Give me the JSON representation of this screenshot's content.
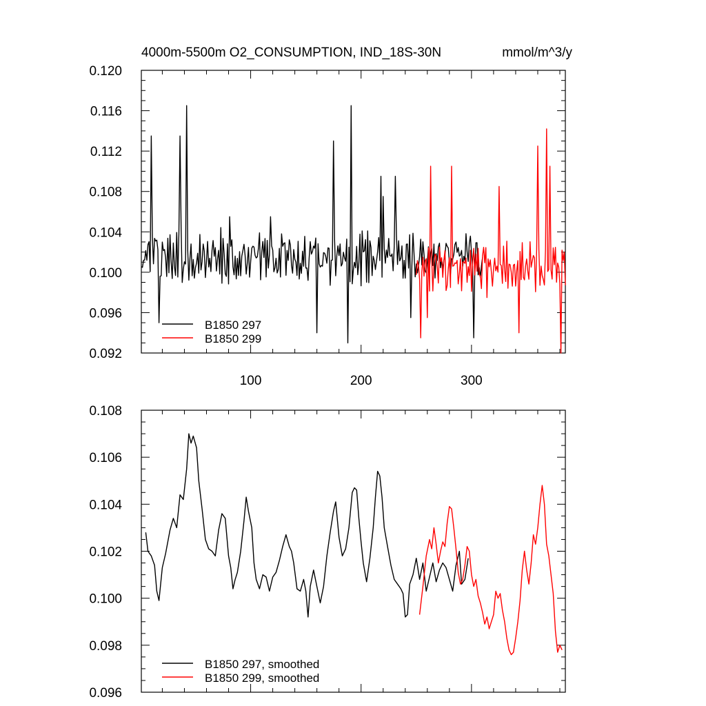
{
  "chart_data": [
    {
      "type": "line",
      "title_left": "4000m-5500m O2_CONSUMPTION, IND_18S-30N",
      "title_right": "mmol/m^3/y",
      "xlim": [
        1,
        385
      ],
      "ylim": [
        0.092,
        0.12
      ],
      "yticks": [
        "0.092",
        "0.096",
        "0.100",
        "0.104",
        "0.108",
        "0.112",
        "0.116",
        "0.120"
      ],
      "xticks": [
        "100",
        "200",
        "300"
      ],
      "legend": {
        "placement": "bottom-left",
        "entries": [
          "B1850 297",
          "B1850 299"
        ]
      },
      "series": [
        {
          "name": "B1850 297",
          "color": "#000000",
          "x_start": 1,
          "x_end": 310,
          "seed": 297,
          "mean": 0.1015,
          "amp": 0.0045,
          "peaks": [
            [
              10,
              0.1135
            ],
            [
              42,
              0.1165
            ],
            [
              36,
              0.1135
            ],
            [
              191,
              0.1165
            ],
            [
              175,
              0.113
            ],
            [
              188,
              0.093
            ],
            [
              160,
              0.094
            ],
            [
              302,
              0.0935
            ],
            [
              17,
              0.095
            ],
            [
              81,
              0.1055
            ],
            [
              118,
              0.1055
            ],
            [
              218,
              0.1095
            ],
            [
              220,
              0.1075
            ],
            [
              231,
              0.1095
            ],
            [
              245,
              0.0955
            ]
          ]
        },
        {
          "name": "B1850 299",
          "color": "#ff0000",
          "x_start": 250,
          "x_end": 385,
          "seed": 299,
          "mean": 0.1005,
          "amp": 0.0045,
          "peaks": [
            [
              263,
              0.1105
            ],
            [
              282,
              0.1105
            ],
            [
              260,
              0.0955
            ],
            [
              254,
              0.0935
            ],
            [
              325,
              0.1085
            ],
            [
              360,
              0.1125
            ],
            [
              368,
              0.1142
            ],
            [
              371,
              0.1105
            ],
            [
              343,
              0.094
            ],
            [
              381,
              0.092
            ],
            [
              384,
              0.102
            ],
            [
              386,
              0.0955
            ]
          ]
        }
      ]
    },
    {
      "type": "line",
      "xlim": [
        1,
        385
      ],
      "ylim": [
        0.096,
        0.108
      ],
      "yticks": [
        "0.096",
        "0.098",
        "0.100",
        "0.102",
        "0.104",
        "0.106",
        "0.108"
      ],
      "xticks": [],
      "legend": {
        "placement": "bottom-left",
        "entries": [
          "B1850 297, smoothed",
          "B1850 299, smoothed"
        ]
      },
      "series": [
        {
          "name": "B1850 297, smoothed",
          "color": "#000000",
          "keypoints": [
            [
              5,
              0.1028
            ],
            [
              7,
              0.102
            ],
            [
              10,
              0.1018
            ],
            [
              13,
              0.1014
            ],
            [
              15,
              0.1003
            ],
            [
              17,
              0.0999
            ],
            [
              20,
              0.1013
            ],
            [
              23,
              0.1019
            ],
            [
              27,
              0.1029
            ],
            [
              30,
              0.1034
            ],
            [
              33,
              0.103
            ],
            [
              36,
              0.1044
            ],
            [
              39,
              0.1042
            ],
            [
              42,
              0.1055
            ],
            [
              44,
              0.107
            ],
            [
              46,
              0.1066
            ],
            [
              48,
              0.1069
            ],
            [
              51,
              0.1064
            ],
            [
              53,
              0.105
            ],
            [
              56,
              0.1038
            ],
            [
              59,
              0.1025
            ],
            [
              62,
              0.1021
            ],
            [
              65,
              0.102
            ],
            [
              68,
              0.1018
            ],
            [
              71,
              0.1029
            ],
            [
              74,
              0.1036
            ],
            [
              77,
              0.1034
            ],
            [
              80,
              0.1018
            ],
            [
              82,
              0.1013
            ],
            [
              84,
              0.1004
            ],
            [
              86,
              0.1008
            ],
            [
              88,
              0.1011
            ],
            [
              91,
              0.102
            ],
            [
              94,
              0.1033
            ],
            [
              96,
              0.1043
            ],
            [
              98,
              0.1037
            ],
            [
              101,
              0.103
            ],
            [
              103,
              0.1015
            ],
            [
              105,
              0.1008
            ],
            [
              108,
              0.1004
            ],
            [
              111,
              0.101
            ],
            [
              114,
              0.1009
            ],
            [
              117,
              0.1003
            ],
            [
              120,
              0.1009
            ],
            [
              123,
              0.1011
            ],
            [
              126,
              0.1016
            ],
            [
              129,
              0.1022
            ],
            [
              132,
              0.1027
            ],
            [
              135,
              0.1022
            ],
            [
              137,
              0.102
            ],
            [
              139,
              0.1015
            ],
            [
              142,
              0.1004
            ],
            [
              145,
              0.1003
            ],
            [
              148,
              0.1008
            ],
            [
              150,
              0.1003
            ],
            [
              152,
              0.0992
            ],
            [
              154,
              0.1005
            ],
            [
              157,
              0.1012
            ],
            [
              160,
              0.1005
            ],
            [
              163,
              0.0998
            ],
            [
              166,
              0.1005
            ],
            [
              169,
              0.1018
            ],
            [
              172,
              0.1028
            ],
            [
              175,
              0.1037
            ],
            [
              177,
              0.1041
            ],
            [
              180,
              0.1026
            ],
            [
              183,
              0.1018
            ],
            [
              186,
              0.1021
            ],
            [
              189,
              0.103
            ],
            [
              192,
              0.1045
            ],
            [
              194,
              0.1047
            ],
            [
              196,
              0.1046
            ],
            [
              198,
              0.1034
            ],
            [
              200,
              0.1024
            ],
            [
              202,
              0.1015
            ],
            [
              205,
              0.1007
            ],
            [
              208,
              0.1017
            ],
            [
              211,
              0.103
            ],
            [
              213,
              0.1043
            ],
            [
              215,
              0.1054
            ],
            [
              217,
              0.1052
            ],
            [
              219,
              0.1043
            ],
            [
              221,
              0.103
            ],
            [
              224,
              0.1022
            ],
            [
              227,
              0.1014
            ],
            [
              230,
              0.1008
            ],
            [
              233,
              0.1006
            ],
            [
              236,
              0.1004
            ],
            [
              238,
              0.1002
            ],
            [
              240,
              0.0992
            ],
            [
              242,
              0.0993
            ],
            [
              244,
              0.1006
            ],
            [
              247,
              0.101
            ],
            [
              250,
              0.1017
            ],
            [
              253,
              0.1008
            ],
            [
              256,
              0.1015
            ],
            [
              259,
              0.1003
            ],
            [
              262,
              0.1009
            ],
            [
              265,
              0.1015
            ],
            [
              268,
              0.1007
            ],
            [
              271,
              0.1012
            ],
            [
              274,
              0.1015
            ],
            [
              277,
              0.1013
            ],
            [
              280,
              0.1008
            ],
            [
              283,
              0.1003
            ],
            [
              286,
              0.1014
            ],
            [
              289,
              0.102
            ],
            [
              291,
              0.1006
            ],
            [
              294,
              0.1008
            ],
            [
              297,
              0.1017
            ]
          ]
        },
        {
          "name": "B1850 299, smoothed",
          "color": "#ff0000",
          "keypoints": [
            [
              253,
              0.0993
            ],
            [
              256,
              0.1005
            ],
            [
              259,
              0.1018
            ],
            [
              262,
              0.1025
            ],
            [
              264,
              0.1021
            ],
            [
              266,
              0.103
            ],
            [
              268,
              0.1023
            ],
            [
              270,
              0.1015
            ],
            [
              272,
              0.102
            ],
            [
              274,
              0.1024
            ],
            [
              276,
              0.1022
            ],
            [
              278,
              0.1032
            ],
            [
              280,
              0.1039
            ],
            [
              282,
              0.1038
            ],
            [
              284,
              0.103
            ],
            [
              286,
              0.1021
            ],
            [
              288,
              0.1011
            ],
            [
              290,
              0.1006
            ],
            [
              292,
              0.1008
            ],
            [
              294,
              0.1014
            ],
            [
              296,
              0.1022
            ],
            [
              298,
              0.102
            ],
            [
              300,
              0.101
            ],
            [
              302,
              0.1005
            ],
            [
              304,
              0.1008
            ],
            [
              306,
              0.1001
            ],
            [
              308,
              0.0998
            ],
            [
              310,
              0.0994
            ],
            [
              312,
              0.0989
            ],
            [
              314,
              0.0992
            ],
            [
              316,
              0.0987
            ],
            [
              318,
              0.099
            ],
            [
              320,
              0.0993
            ],
            [
              322,
              0.1003
            ],
            [
              324,
              0.1
            ],
            [
              326,
              0.1002
            ],
            [
              328,
              0.0995
            ],
            [
              330,
              0.099
            ],
            [
              332,
              0.0983
            ],
            [
              334,
              0.0978
            ],
            [
              336,
              0.0976
            ],
            [
              338,
              0.0977
            ],
            [
              340,
              0.0983
            ],
            [
              342,
              0.099
            ],
            [
              344,
              0.0999
            ],
            [
              346,
              0.1012
            ],
            [
              348,
              0.102
            ],
            [
              350,
              0.1012
            ],
            [
              352,
              0.1006
            ],
            [
              354,
              0.1015
            ],
            [
              356,
              0.1027
            ],
            [
              358,
              0.1023
            ],
            [
              360,
              0.103
            ],
            [
              362,
              0.104
            ],
            [
              364,
              0.1048
            ],
            [
              366,
              0.104
            ],
            [
              368,
              0.1023
            ],
            [
              370,
              0.1018
            ],
            [
              372,
              0.101
            ],
            [
              374,
              0.1002
            ],
            [
              376,
              0.0986
            ],
            [
              378,
              0.0977
            ],
            [
              380,
              0.098
            ],
            [
              382,
              0.0978
            ]
          ]
        }
      ]
    }
  ]
}
